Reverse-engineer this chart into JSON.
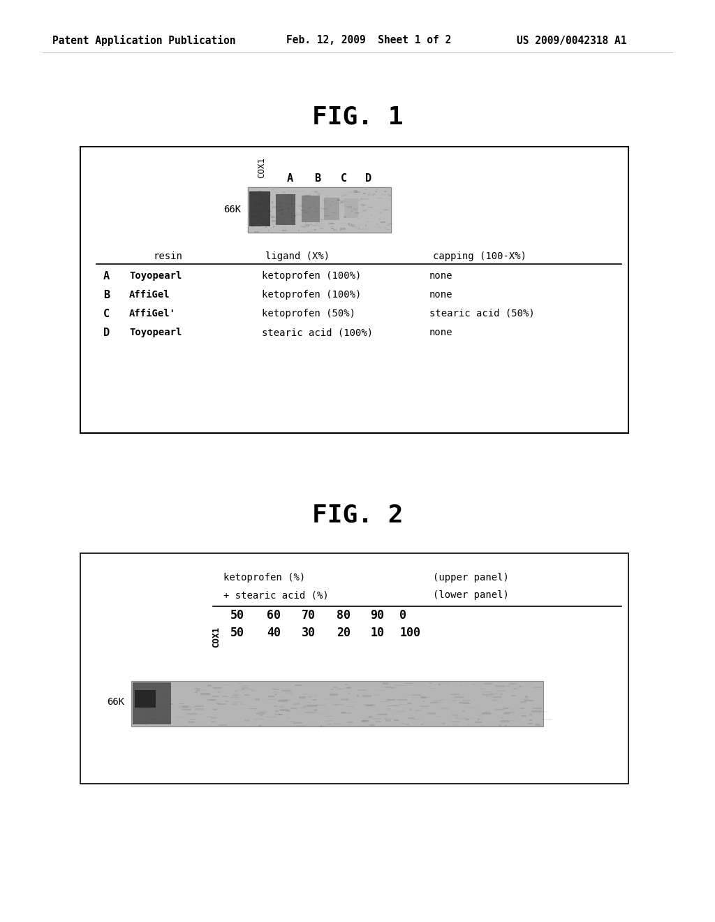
{
  "bg_color": "#ffffff",
  "header_left": "Patent Application Publication",
  "header_mid": "Feb. 12, 2009  Sheet 1 of 2",
  "header_right": "US 2009/0042318 A1",
  "fig1_title": "FIG. 1",
  "fig2_title": "FIG. 2",
  "row_data": [
    [
      "A",
      "Toyopearl",
      "ketoprofen (100%)",
      "none"
    ],
    [
      "B",
      "AffiGel",
      "ketoprofen (100%)",
      "none"
    ],
    [
      "C",
      "AffiGel'",
      "ketoprofen (50%)",
      "stearic acid (50%)"
    ],
    [
      "D",
      "Toyopearl",
      "stearic acid (100%)",
      "none"
    ]
  ],
  "upper_nums": [
    "50",
    "60",
    "70",
    "80",
    "90",
    "0"
  ],
  "lower_nums": [
    "50",
    "40",
    "30",
    "20",
    "10",
    "100"
  ]
}
